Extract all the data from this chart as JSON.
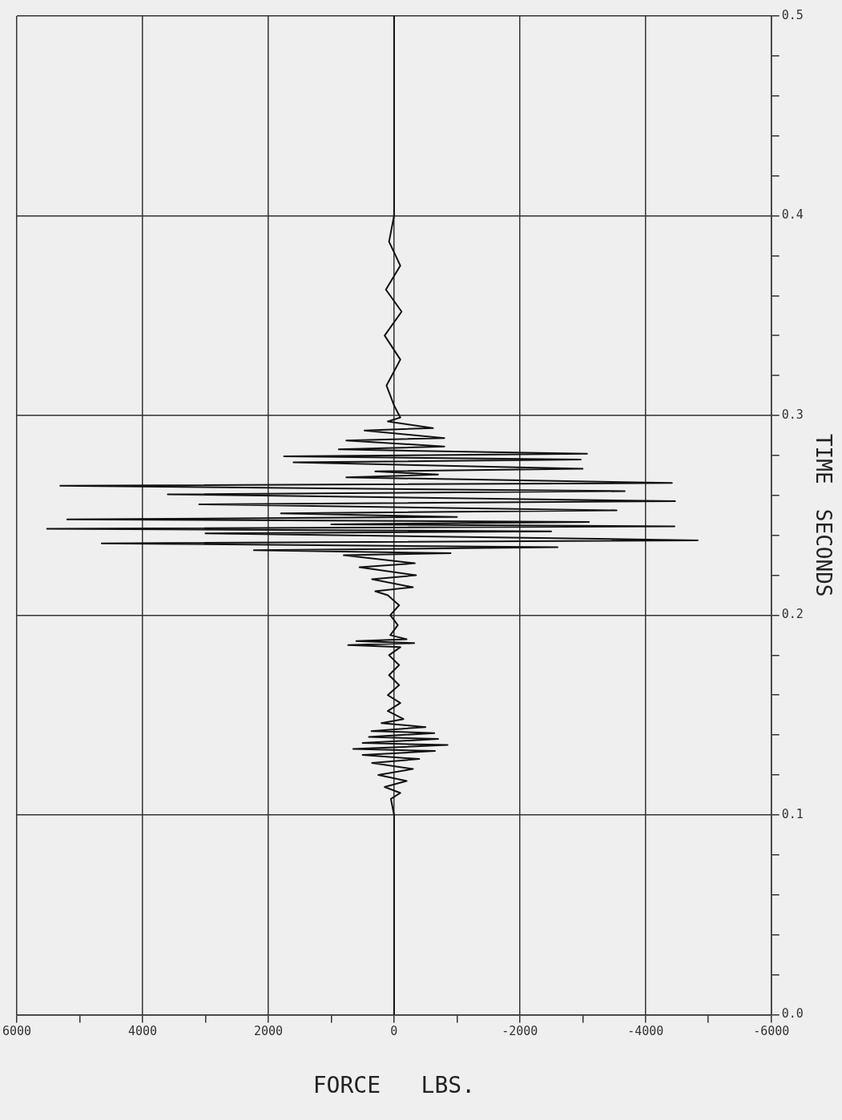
{
  "chart_data": {
    "type": "line",
    "orientation": "horizontal",
    "xlabel": "FORCE   LBS.",
    "ylabel": "TIME  SECONDS",
    "xlim": [
      6000,
      -6000
    ],
    "ylim": [
      0,
      0.5
    ],
    "xticks": [
      6000,
      {
        "value": 5000,
        "label": null
      },
      4000,
      {
        "value": 3000,
        "label": null
      },
      2000,
      {
        "value": 1000,
        "label": null
      },
      0,
      {
        "value": -1000,
        "label": null
      },
      -2000,
      {
        "value": -3000,
        "label": null
      },
      -4000,
      {
        "value": -5000,
        "label": null
      },
      -6000
    ],
    "yticks": [
      {
        "value": 0,
        "label": "0.0"
      },
      {
        "value": 0.02,
        "label": null
      },
      {
        "value": 0.04,
        "label": null
      },
      {
        "value": 0.06,
        "label": null
      },
      {
        "value": 0.08,
        "label": null
      },
      0.1,
      {
        "value": 0.12,
        "label": null
      },
      {
        "value": 0.14,
        "label": null
      },
      {
        "value": 0.16,
        "label": null
      },
      {
        "value": 0.18,
        "label": null
      },
      0.2,
      {
        "value": 0.22,
        "label": null
      },
      {
        "value": 0.24,
        "label": null
      },
      {
        "value": 0.26,
        "label": null
      },
      {
        "value": 0.28,
        "label": null
      },
      0.3,
      {
        "value": 0.32,
        "label": null
      },
      {
        "value": 0.34,
        "label": null
      },
      {
        "value": 0.36,
        "label": null
      },
      {
        "value": 0.38,
        "label": null
      },
      0.4,
      {
        "value": 0.42,
        "label": null
      },
      {
        "value": 0.44,
        "label": null
      },
      {
        "value": 0.46,
        "label": null
      },
      {
        "value": 0.48,
        "label": null
      },
      0.5
    ],
    "grid": true,
    "series": [
      {
        "color": "#111111",
        "x": [
          0,
          0.05,
          0.1,
          0.108,
          0.111,
          0.114,
          0.117,
          0.12,
          0.123,
          0.126,
          0.128,
          0.13,
          0.132,
          0.133,
          0.135,
          0.136,
          0.138,
          0.139,
          0.141,
          0.142,
          0.144,
          0.146,
          0.148,
          0.152,
          0.156,
          0.16,
          0.165,
          0.17,
          0.175,
          0.18,
          0.184,
          0.185,
          0.186,
          0.187,
          0.188,
          0.19,
          0.195,
          0.2,
          0.205,
          0.21,
          0.212,
          0.214,
          0.218,
          0.22,
          0.224,
          0.226,
          0.23,
          0.231,
          0.2325,
          0.234,
          0.236,
          0.2375,
          0.241,
          0.242,
          0.2433,
          0.2445,
          0.2455,
          0.2467,
          0.248,
          0.2492,
          0.251,
          0.2525,
          0.2555,
          0.2571,
          0.2605,
          0.2621,
          0.2648,
          0.2662,
          0.269,
          0.2704,
          0.272,
          0.2733,
          0.2765,
          0.2779,
          0.2795,
          0.2808,
          0.283,
          0.2845,
          0.2875,
          0.2887,
          0.2925,
          0.2937,
          0.297,
          0.299,
          0.305,
          0.315,
          0.328,
          0.34,
          0.352,
          0.363,
          0.375,
          0.387,
          0.4,
          0.45,
          0.5
        ],
        "values": [
          0,
          0,
          0,
          50,
          -100,
          150,
          -200,
          250,
          -300,
          350,
          -400,
          500,
          -650,
          650,
          -850,
          500,
          -700,
          400,
          -640,
          360,
          -500,
          200,
          -150,
          100,
          -100,
          100,
          -80,
          80,
          -80,
          80,
          -100,
          730,
          -320,
          600,
          -200,
          60,
          -60,
          60,
          -80,
          100,
          300,
          -300,
          350,
          -350,
          550,
          -330,
          800,
          -900,
          2230,
          -2600,
          4650,
          -4830,
          3000,
          -2500,
          5520,
          -4460,
          1000,
          -3100,
          5200,
          -1000,
          1800,
          -3540,
          3100,
          -4470,
          3600,
          -3670,
          5310,
          -4420,
          760,
          -700,
          300,
          -3000,
          1600,
          -2970,
          1750,
          -3070,
          880,
          -800,
          760,
          -800,
          470,
          -620,
          100,
          -100,
          0,
          120,
          -100,
          150,
          -120,
          130,
          -100,
          80,
          0,
          0,
          0
        ]
      }
    ]
  }
}
